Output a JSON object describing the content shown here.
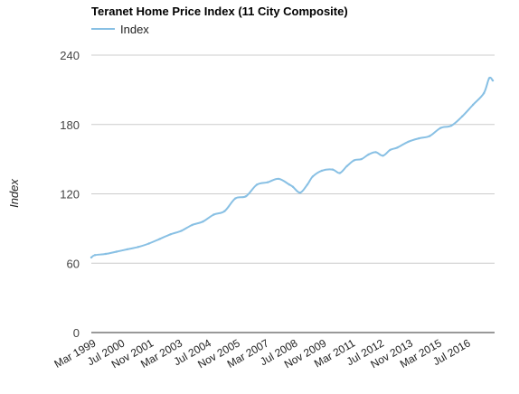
{
  "chart_data": {
    "type": "line",
    "title": "Teranet Home Price Index (11 City Composite)",
    "ylabel": "Index",
    "xlabel": "",
    "ylim": [
      0,
      240
    ],
    "yticks": [
      0,
      60,
      120,
      180,
      240
    ],
    "grid": true,
    "legend": "top-left",
    "line_color": "#88c0e4",
    "x_tick_labels": [
      "Mar 1999",
      "Jul 2000",
      "Nov 2001",
      "Mar 2003",
      "Jul 2004",
      "Nov 2005",
      "Mar 2007",
      "Jul 2008",
      "Nov 2009",
      "Mar 2011",
      "Jul 2012",
      "Nov 2013",
      "Mar 2015",
      "Jul 2016"
    ],
    "series": [
      {
        "name": "Index",
        "x": [
          "1999-01",
          "1999-03",
          "1999-09",
          "2000-03",
          "2000-09",
          "2001-03",
          "2001-09",
          "2002-03",
          "2002-09",
          "2003-03",
          "2003-09",
          "2004-03",
          "2004-09",
          "2005-03",
          "2005-09",
          "2006-03",
          "2006-09",
          "2007-03",
          "2007-09",
          "2008-03",
          "2008-05",
          "2008-09",
          "2009-01",
          "2009-04",
          "2009-09",
          "2010-03",
          "2010-07",
          "2010-11",
          "2011-03",
          "2011-07",
          "2011-11",
          "2012-03",
          "2012-07",
          "2012-11",
          "2013-03",
          "2013-09",
          "2014-03",
          "2014-09",
          "2015-03",
          "2015-09",
          "2016-03",
          "2016-09",
          "2017-03",
          "2017-06",
          "2017-08"
        ],
        "values": [
          65,
          67,
          68,
          70,
          72,
          74,
          77,
          81,
          85,
          88,
          93,
          96,
          102,
          105,
          116,
          118,
          128,
          130,
          133,
          128,
          126,
          121,
          128,
          135,
          140,
          141,
          138,
          144,
          149,
          150,
          154,
          156,
          153,
          158,
          160,
          165,
          168,
          170,
          177,
          179,
          187,
          197,
          207,
          220,
          218
        ]
      }
    ]
  }
}
